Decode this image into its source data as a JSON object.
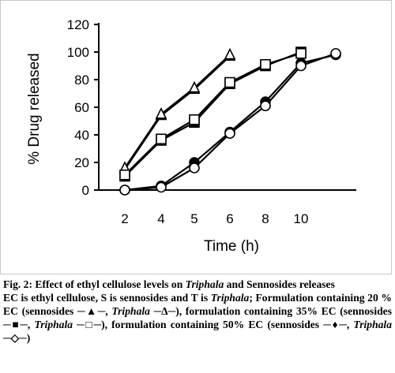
{
  "chart_data": {
    "type": "line",
    "categories": [
      "2",
      "4",
      "5",
      "6",
      "8",
      "10",
      ""
    ],
    "ylabel": "% Drug released",
    "xlabel": "Time (h)",
    "ylim": [
      0,
      120
    ],
    "yticks": [
      "0",
      "20",
      "40",
      "60",
      "80",
      "100",
      "120"
    ],
    "grid": false,
    "legend": "none",
    "series": [
      {
        "marker": "filled-triangle",
        "values": [
          15,
          54,
          73,
          97,
          null,
          null,
          null
        ]
      },
      {
        "marker": "open-triangle",
        "values": [
          16,
          55,
          74,
          98,
          null,
          null,
          null
        ]
      },
      {
        "marker": "filled-square",
        "values": [
          10,
          36,
          49,
          77,
          90,
          100,
          null
        ]
      },
      {
        "marker": "open-square",
        "values": [
          11,
          37,
          51,
          78,
          91,
          99,
          null
        ]
      },
      {
        "marker": "filled-diamond",
        "values": [
          0,
          3,
          20,
          42,
          64,
          92,
          98
        ]
      },
      {
        "marker": "open-diamond",
        "values": [
          0,
          2,
          16,
          41,
          61,
          90,
          99
        ]
      }
    ],
    "colors": {
      "line": "#000000",
      "marker_fill": "#000000",
      "marker_open": "#ffffff"
    }
  },
  "caption": {
    "fig_label": "Fig. 2: Effect of ethyl cellulose levels on ",
    "fig_italic": "Triphala",
    "fig_rest": " and Sennosides releases",
    "line1_a": "EC is ethyl cellulose, S is sennosides and T is ",
    "line1_b": "Triphala",
    "line1_c": "; Formulation containing 20 % EC (sennosides ─▲─, ",
    "line1_d": "Triphala",
    "line1_e": " ─∆─), formulation containing 35% EC (sennosides ─■─, ",
    "line1_f": "Triphala",
    "line1_g": " ─□─), formulation containing 50% EC (sennosides ─♦─, ",
    "line1_h": "Triphala",
    "line1_i": " ─◇─)"
  }
}
